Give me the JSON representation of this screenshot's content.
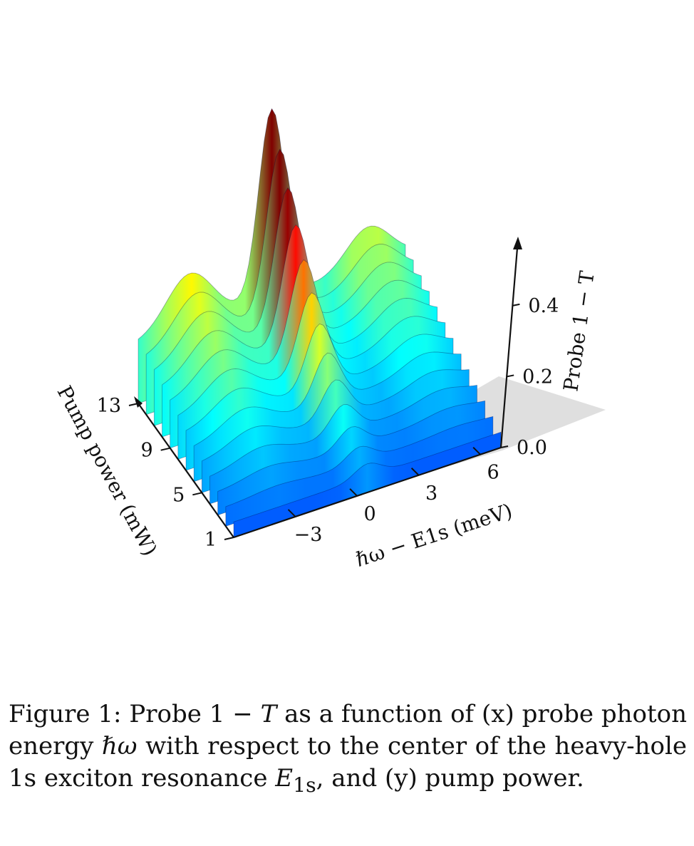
{
  "chart_data": {
    "type": "surface",
    "title": "",
    "xlabel": "ℏω − E1s (meV)",
    "ylabel": "Pump power (mW)",
    "zlabel": "Probe 1 − T",
    "x_ticks": [
      "−3",
      "0",
      "3",
      "6"
    ],
    "y_ticks": [
      "1",
      "5",
      "9",
      "13"
    ],
    "z_ticks": [
      "0.0",
      "0.2",
      "0.4"
    ],
    "xlim": [
      -6,
      7
    ],
    "ylim": [
      1,
      13
    ],
    "zlim": [
      0,
      0.45
    ],
    "colormap": "jet",
    "pump_power_slices": [
      1,
      2,
      3,
      4,
      5,
      6,
      7,
      8,
      9,
      10,
      11,
      12,
      13
    ],
    "peak": {
      "x": 0.5,
      "value": 0.44,
      "pump_power": 13
    },
    "series_note": ""
  },
  "caption": {
    "label": "Figure 1:",
    "text_a": " Probe 1 − ",
    "var_T": "T",
    "text_b": " as a function of (x) probe photon energy ",
    "var_hw": "ℏω",
    "text_c": " with respect to the center of the heavy-hole 1s exciton resonance ",
    "var_E": "E",
    "var_E_sub": "1s",
    "text_d": ", and (y) pump power."
  },
  "colors": {
    "axis": "#111111",
    "shadow": "#d6d6d6",
    "low": "#00008b",
    "high": "#ff0000"
  }
}
